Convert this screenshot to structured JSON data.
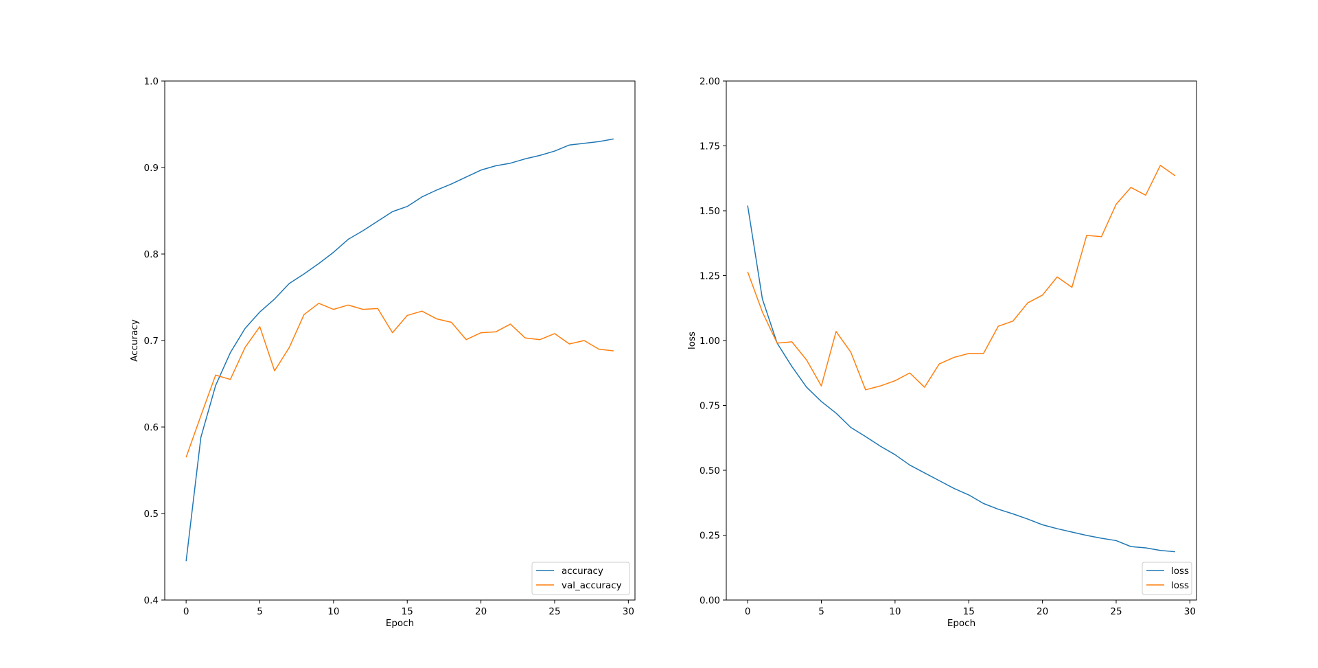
{
  "chart_data": [
    {
      "type": "line",
      "title": "",
      "xlabel": "Epoch",
      "ylabel": "Accuracy",
      "xlim": [
        -1.45,
        30.45
      ],
      "ylim": [
        0.4,
        1.0
      ],
      "xticks": [
        0,
        5,
        10,
        15,
        20,
        25,
        30
      ],
      "xtick_labels": [
        "0",
        "5",
        "10",
        "15",
        "20",
        "25",
        "30"
      ],
      "yticks": [
        0.4,
        0.5,
        0.6,
        0.7,
        0.8,
        0.9,
        1.0
      ],
      "ytick_labels": [
        "0.4",
        "0.5",
        "0.6",
        "0.7",
        "0.8",
        "0.9",
        "1.0"
      ],
      "grid": false,
      "legend_position": "lower right",
      "x": [
        0,
        1,
        2,
        3,
        4,
        5,
        6,
        7,
        8,
        9,
        10,
        11,
        12,
        13,
        14,
        15,
        16,
        17,
        18,
        19,
        20,
        21,
        22,
        23,
        24,
        25,
        26,
        27,
        28,
        29
      ],
      "series": [
        {
          "name": "accuracy",
          "color": "#1f77b4",
          "values": [
            0.445,
            0.588,
            0.648,
            0.686,
            0.714,
            0.733,
            0.748,
            0.766,
            0.777,
            0.789,
            0.802,
            0.817,
            0.827,
            0.838,
            0.849,
            0.855,
            0.866,
            0.874,
            0.881,
            0.889,
            0.897,
            0.902,
            0.905,
            0.91,
            0.914,
            0.919,
            0.926,
            0.928,
            0.93,
            0.933
          ]
        },
        {
          "name": "val_accuracy",
          "color": "#ff7f0e",
          "values": [
            0.565,
            0.613,
            0.66,
            0.655,
            0.692,
            0.716,
            0.665,
            0.692,
            0.73,
            0.743,
            0.736,
            0.741,
            0.736,
            0.737,
            0.709,
            0.729,
            0.734,
            0.725,
            0.721,
            0.701,
            0.709,
            0.71,
            0.719,
            0.703,
            0.701,
            0.708,
            0.696,
            0.7,
            0.69,
            0.688
          ]
        }
      ]
    },
    {
      "type": "line",
      "title": "",
      "xlabel": "Epoch",
      "ylabel": "loss",
      "xlim": [
        -1.45,
        30.45
      ],
      "ylim": [
        0.0,
        2.0
      ],
      "xticks": [
        0,
        5,
        10,
        15,
        20,
        25,
        30
      ],
      "xtick_labels": [
        "0",
        "5",
        "10",
        "15",
        "20",
        "25",
        "30"
      ],
      "yticks": [
        0.0,
        0.25,
        0.5,
        0.75,
        1.0,
        1.25,
        1.5,
        1.75,
        2.0
      ],
      "ytick_labels": [
        "0.00",
        "0.25",
        "0.50",
        "0.75",
        "1.00",
        "1.25",
        "1.50",
        "1.75",
        "2.00"
      ],
      "grid": false,
      "legend_position": "lower right",
      "x": [
        0,
        1,
        2,
        3,
        4,
        5,
        6,
        7,
        8,
        9,
        10,
        11,
        12,
        13,
        14,
        15,
        16,
        17,
        18,
        19,
        20,
        21,
        22,
        23,
        24,
        25,
        26,
        27,
        28,
        29
      ],
      "series": [
        {
          "name": "loss",
          "color": "#1f77b4",
          "values": [
            1.52,
            1.16,
            0.99,
            0.9,
            0.82,
            0.765,
            0.72,
            0.665,
            0.63,
            0.593,
            0.56,
            0.52,
            0.49,
            0.46,
            0.43,
            0.405,
            0.372,
            0.35,
            0.332,
            0.312,
            0.29,
            0.275,
            0.262,
            0.249,
            0.238,
            0.229,
            0.206,
            0.201,
            0.191,
            0.186
          ]
        },
        {
          "name": "loss",
          "color": "#ff7f0e",
          "values": [
            1.265,
            1.11,
            0.99,
            0.995,
            0.925,
            0.825,
            1.035,
            0.955,
            0.81,
            0.825,
            0.845,
            0.875,
            0.82,
            0.91,
            0.935,
            0.95,
            0.95,
            1.055,
            1.075,
            1.145,
            1.175,
            1.245,
            1.205,
            1.405,
            1.4,
            1.525,
            1.59,
            1.56,
            1.675,
            1.635
          ]
        }
      ]
    }
  ]
}
